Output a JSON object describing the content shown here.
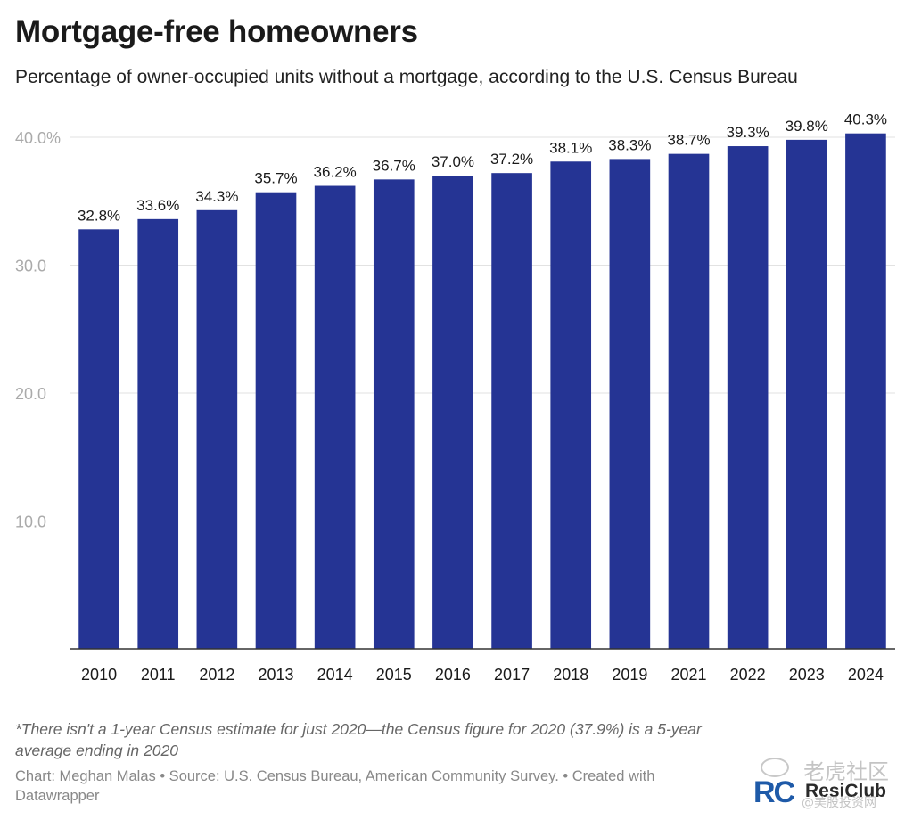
{
  "header": {
    "title": "Mortgage-free homeowners",
    "subtitle": "Percentage of owner-occupied units without a mortgage, according to the U.S. Census Bureau"
  },
  "chart_data": {
    "type": "bar",
    "categories": [
      "2010",
      "2011",
      "2012",
      "2013",
      "2014",
      "2015",
      "2016",
      "2017",
      "2018",
      "2019",
      "2021",
      "2022",
      "2023",
      "2024"
    ],
    "values": [
      32.8,
      33.6,
      34.3,
      35.7,
      36.2,
      36.7,
      37.0,
      37.2,
      38.1,
      38.3,
      38.7,
      39.3,
      39.8,
      40.3
    ],
    "data_labels": [
      "32.8%",
      "33.6%",
      "34.3%",
      "35.7%",
      "36.2%",
      "36.7%",
      "37.0%",
      "37.2%",
      "38.1%",
      "38.3%",
      "38.7%",
      "39.3%",
      "39.8%",
      "40.3%"
    ],
    "yticks": [
      10,
      20,
      30,
      40
    ],
    "ytick_labels": [
      "10.0",
      "20.0",
      "30.0",
      "40.0%"
    ],
    "ylim": [
      0,
      40
    ],
    "grid": true,
    "bar_color": "#253494"
  },
  "footnote": "*There isn't a 1-year Census estimate for just 2020—the Census figure for 2020 (37.9%) is a 5-year average ending in 2020",
  "credit": "Chart: Meghan Malas • Source: U.S. Census Bureau, American Community Survey. • Created with Datawrapper",
  "logo": {
    "mark": "RC",
    "name": "ResiClub",
    "watermark_main": "老虎社区",
    "watermark_sub": "@美股投资网"
  }
}
